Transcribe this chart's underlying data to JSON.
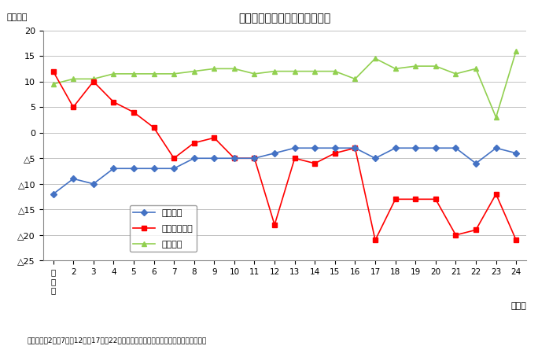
{
  "title": "年齢３区分別人口増減数の推移",
  "ylabel": "（千人）",
  "xlabel_unit": "（年）",
  "note": "注）　平成2年、7年、12年、17年、22年は国勢調査確定人口と推計人口の差を含む。",
  "x_values": [
    1,
    2,
    3,
    4,
    5,
    6,
    7,
    8,
    9,
    10,
    11,
    12,
    13,
    14,
    15,
    16,
    17,
    18,
    19,
    20,
    21,
    22,
    23,
    24
  ],
  "nensh_data": [
    -12,
    -9,
    -10,
    -7,
    -7,
    -7,
    -7,
    -5,
    -5,
    -5,
    -5,
    -4,
    -3,
    -3,
    -3,
    -3,
    -5,
    -3,
    -3,
    -3,
    -3,
    -6,
    -3,
    -4
  ],
  "seisan_data": [
    12,
    5,
    10,
    6,
    4,
    1,
    -5,
    -2,
    -1,
    -5,
    -5,
    -18,
    -5,
    -6,
    -4,
    -3,
    -21,
    -13,
    -13,
    -13,
    -20,
    -19,
    -12,
    -21
  ],
  "rounen_data": [
    9.5,
    10.5,
    10.5,
    11.5,
    11.5,
    11.5,
    11.5,
    12,
    12.5,
    12.5,
    11.5,
    12,
    12,
    12,
    12,
    10.5,
    14.5,
    12.5,
    13,
    13,
    11.5,
    12.5,
    3,
    16
  ],
  "line_nensh_color": "#4472C4",
  "line_seisan_color": "#FF0000",
  "line_rounen_color": "#92D050",
  "ylim": [
    -25,
    20
  ],
  "yticks": [
    -25,
    -20,
    -15,
    -10,
    -5,
    0,
    5,
    10,
    15,
    20
  ],
  "legend_labels": [
    "年少人口",
    "生産年齢人口",
    "老年人口"
  ],
  "background_color": "#FFFFFF",
  "grid_color": "#AAAAAA"
}
